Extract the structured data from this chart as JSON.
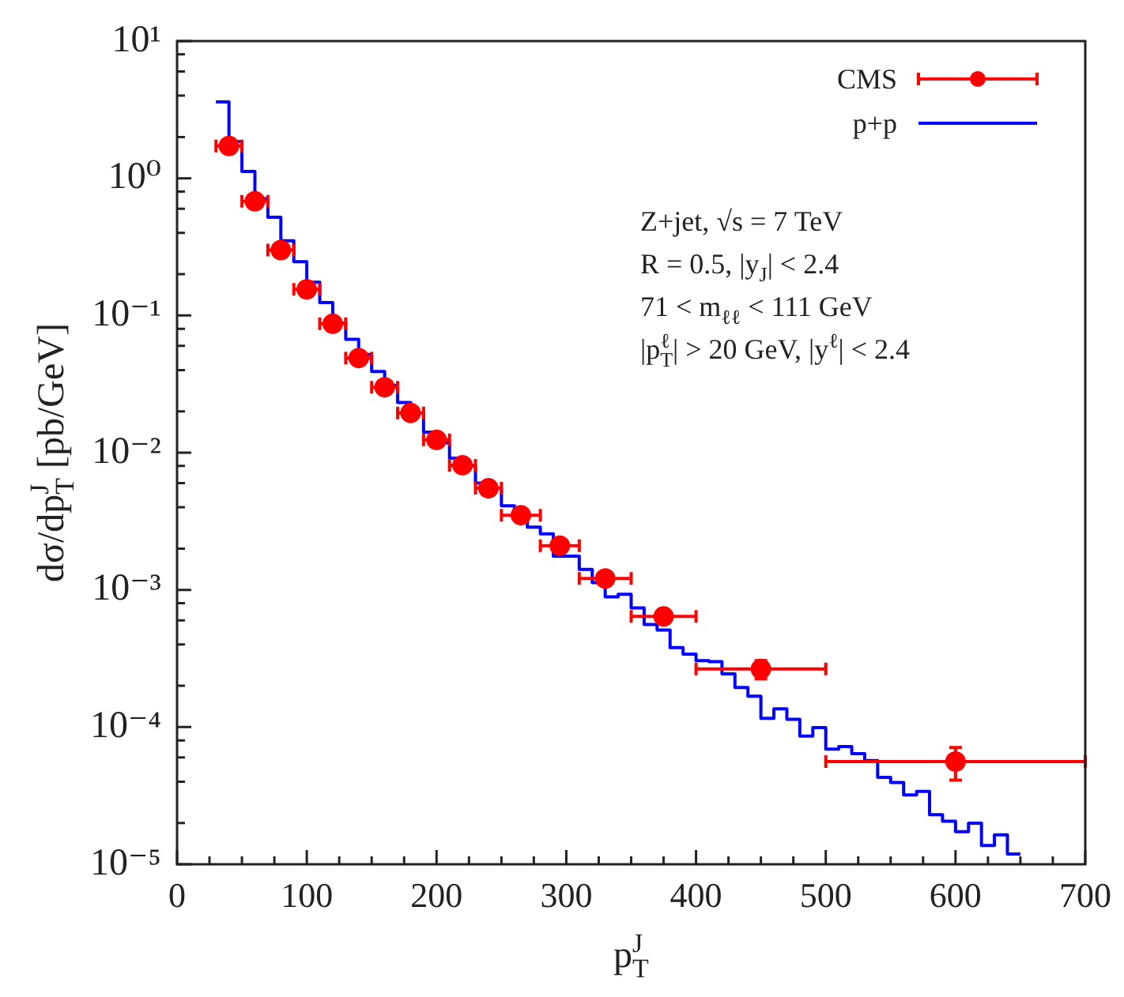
{
  "chart_data": {
    "type": "scatter",
    "xlabel": "p$^{J}$$_{T}$",
    "ylabel": "dσ/dp$^{J}$$_{T}$ [pb/GeV]",
    "xlim": [
      0,
      700
    ],
    "xticks": [
      0,
      {
        "value": 25,
        "label": null
      },
      100,
      {
        "value": 125,
        "label": null
      },
      {
        "value": 50,
        "label": null
      },
      {
        "value": 75,
        "label": null
      },
      {
        "value": 150,
        "label": null
      },
      {
        "value": 175,
        "label": null
      },
      200,
      {
        "value": 225,
        "label": null
      },
      {
        "value": 250,
        "label": null
      },
      {
        "value": 275,
        "label": null
      },
      300,
      {
        "value": 325,
        "label": null
      },
      {
        "value": 350,
        "label": null
      },
      {
        "value": 375,
        "label": null
      },
      400,
      {
        "value": 425,
        "label": null
      },
      {
        "value": 450,
        "label": null
      },
      {
        "value": 475,
        "label": null
      },
      500,
      {
        "value": 525,
        "label": null
      },
      {
        "value": 550,
        "label": null
      },
      {
        "value": 575,
        "label": null
      },
      600,
      {
        "value": 625,
        "label": null
      },
      {
        "value": 650,
        "label": null
      },
      {
        "value": 675,
        "label": null
      },
      700
    ],
    "ylim": [
      1e-05,
      10
    ],
    "yticks": [
      {
        "value": 10,
        "label": "10¹"
      },
      {
        "value": 1,
        "label": "10⁰"
      },
      {
        "value": 0.1,
        "label": "10⁻¹"
      },
      {
        "value": 0.01,
        "label": "10⁻²"
      },
      {
        "value": 0.001,
        "label": "10⁻³"
      },
      {
        "value": 0.0001,
        "label": "10⁻⁴"
      },
      {
        "value": 1e-05,
        "label": "10⁻⁵"
      },
      {
        "value": 2,
        "label": null
      },
      {
        "value": 4,
        "label": null
      },
      {
        "value": 6,
        "label": null
      },
      {
        "value": 8,
        "label": null
      },
      {
        "value": 0.2,
        "label": null
      },
      {
        "value": 0.4,
        "label": null
      },
      {
        "value": 0.6,
        "label": null
      },
      {
        "value": 0.8,
        "label": null
      },
      {
        "value": 0.02,
        "label": null
      },
      {
        "value": 0.04,
        "label": null
      },
      {
        "value": 0.06,
        "label": null
      },
      {
        "value": 0.08,
        "label": null
      },
      {
        "value": 0.002,
        "label": null
      },
      {
        "value": 0.004,
        "label": null
      },
      {
        "value": 0.006,
        "label": null
      },
      {
        "value": 0.008,
        "label": null
      },
      {
        "value": 0.0002,
        "label": null
      },
      {
        "value": 0.0004,
        "label": null
      },
      {
        "value": 0.0006,
        "label": null
      },
      {
        "value": 0.0008,
        "label": null
      },
      {
        "value": 2e-05,
        "label": null
      },
      {
        "value": 4e-05,
        "label": null
      },
      {
        "value": 6e-05,
        "label": null
      },
      {
        "value": 8e-05,
        "label": null
      }
    ],
    "log": "y",
    "legend": "top right",
    "annotations": [
      "Z+jet, √s = 7 TeV",
      "R = 0.5, |y$_{J}$| < 2.4",
      "71 < m$_{ℓℓ}$ < 111 GeV",
      "|p$^{ℓ}$$_{T}$| > 20 GeV, |y$^{ℓ}$| < 2.4"
    ],
    "series": [
      {
        "name": "CMS",
        "color": "#ff0000",
        "marker": "circle",
        "x": [
          40,
          60,
          80,
          100,
          120,
          140,
          160,
          180,
          200,
          220,
          240,
          265,
          295,
          330,
          375,
          450,
          600
        ],
        "values": [
          1.72,
          0.68,
          0.3,
          0.155,
          0.087,
          0.049,
          0.03,
          0.0195,
          0.0124,
          0.0081,
          0.0055,
          0.0035,
          0.0021,
          0.00121,
          0.00064,
          0.000265,
          5.6e-05
        ],
        "xerrors": [
          10,
          10,
          10,
          10,
          10,
          10,
          10,
          10,
          10,
          10,
          10,
          15,
          15,
          20,
          25,
          50,
          100
        ],
        "errors": [
          null,
          null,
          null,
          null,
          null,
          null,
          null,
          null,
          null,
          null,
          null,
          null,
          null,
          null,
          null,
          4e-05,
          1.5e-05
        ]
      },
      {
        "name": "p+p",
        "type": "histogram",
        "color": "#0000ff",
        "bins": [
          30,
          40,
          50,
          60,
          70,
          80,
          90,
          100,
          110,
          120,
          130,
          140,
          150,
          160,
          170,
          180,
          190,
          200,
          210,
          220,
          230,
          240,
          250,
          260,
          270,
          280,
          290,
          300,
          310,
          320,
          330,
          340,
          350,
          360,
          370,
          380,
          390,
          400,
          410,
          420,
          430,
          440,
          450,
          460,
          470,
          480,
          490,
          500,
          510,
          520,
          530,
          540,
          550,
          560,
          570,
          580,
          590,
          600,
          610,
          620,
          630,
          640,
          650
        ],
        "values": [
          3.6,
          1.85,
          1.12,
          0.71,
          0.52,
          0.35,
          0.247,
          0.175,
          0.124,
          0.088,
          0.067,
          0.052,
          0.039,
          0.031,
          0.0232,
          0.0194,
          0.0141,
          0.0118,
          0.0091,
          0.008,
          0.006,
          0.0055,
          0.0041,
          0.0035,
          0.00287,
          0.00256,
          0.00176,
          0.00176,
          0.00141,
          0.00113,
          0.00089,
          0.00093,
          0.00074,
          0.00056,
          0.00051,
          0.00038,
          0.00034,
          0.000305,
          0.0003,
          0.000244,
          0.000194,
          0.000168,
          0.000116,
          0.000136,
          0.000114,
          8.6e-05,
          9.9e-05,
          6.9e-05,
          7.2e-05,
          6.4e-05,
          5.7e-05,
          4.3e-05,
          3.95e-05,
          3.2e-05,
          3.4e-05,
          2.3e-05,
          2.06e-05,
          1.73e-05,
          1.99e-05,
          1.37e-05,
          1.64e-05,
          1.19e-05
        ]
      }
    ]
  }
}
